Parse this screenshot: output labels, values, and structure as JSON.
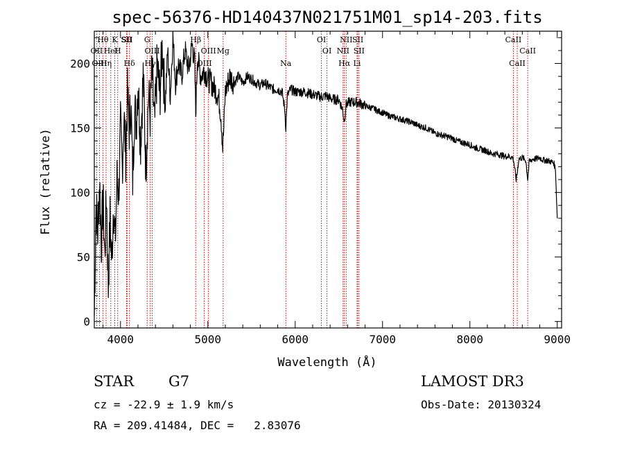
{
  "chart_data": {
    "type": "line",
    "title": "spec-56376-HD140437N021751M01_sp14-203.fits",
    "xlabel": "Wavelength (Å)",
    "ylabel": "Flux (relative)",
    "xlim": [
      3700,
      9050
    ],
    "ylim": [
      -5,
      225
    ],
    "xticks": [
      4000,
      5000,
      6000,
      7000,
      8000,
      9000
    ],
    "xtick_labels": [
      "4000",
      "5000",
      "6000",
      "7000",
      "8000",
      "9000"
    ],
    "yticks": [
      0,
      50,
      100,
      150,
      200
    ],
    "ytick_labels": [
      "0",
      "50",
      "100",
      "150",
      "200"
    ],
    "line_color": "#000000",
    "marker_color": "#cc0000",
    "series": [
      {
        "name": "flux",
        "x": [
          3700,
          3720,
          3740,
          3760,
          3780,
          3800,
          3820,
          3840,
          3860,
          3880,
          3900,
          3920,
          3940,
          3960,
          3980,
          4000,
          4020,
          4040,
          4060,
          4080,
          4100,
          4120,
          4140,
          4160,
          4180,
          4200,
          4230,
          4260,
          4290,
          4320,
          4340,
          4360,
          4390,
          4420,
          4450,
          4480,
          4510,
          4540,
          4570,
          4600,
          4630,
          4660,
          4700,
          4740,
          4780,
          4820,
          4850,
          4861,
          4880,
          4920,
          4960,
          5000,
          5040,
          5080,
          5120,
          5150,
          5170,
          5183,
          5200,
          5250,
          5300,
          5350,
          5400,
          5450,
          5500,
          5550,
          5600,
          5650,
          5700,
          5750,
          5800,
          5850,
          5880,
          5893,
          5910,
          5950,
          6000,
          6050,
          6100,
          6150,
          6200,
          6250,
          6300,
          6350,
          6400,
          6450,
          6500,
          6540,
          6563,
          6580,
          6620,
          6660,
          6700,
          6750,
          6800,
          6850,
          6900,
          6950,
          7000,
          7050,
          7100,
          7150,
          7200,
          7250,
          7300,
          7350,
          7400,
          7450,
          7500,
          7550,
          7600,
          7650,
          7700,
          7750,
          7800,
          7850,
          7900,
          7950,
          8000,
          8050,
          8100,
          8150,
          8200,
          8250,
          8300,
          8350,
          8400,
          8450,
          8490,
          8500,
          8530,
          8542,
          8560,
          8600,
          8640,
          8662,
          8680,
          8720,
          8760,
          8800,
          8840,
          8880,
          8920,
          8960,
          8980,
          9000
        ],
        "y": [
          5,
          90,
          70,
          110,
          60,
          95,
          50,
          100,
          25,
          80,
          45,
          95,
          60,
          110,
          100,
          150,
          120,
          160,
          130,
          175,
          150,
          170,
          110,
          165,
          155,
          185,
          140,
          190,
          120,
          175,
          160,
          195,
          150,
          200,
          175,
          215,
          165,
          210,
          175,
          220,
          185,
          200,
          190,
          210,
          195,
          215,
          200,
          160,
          205,
          190,
          195,
          188,
          185,
          180,
          175,
          160,
          135,
          150,
          178,
          190,
          185,
          190,
          185,
          190,
          188,
          185,
          183,
          185,
          182,
          180,
          180,
          178,
          165,
          150,
          175,
          180,
          178,
          178,
          178,
          177,
          176,
          175,
          174,
          175,
          173,
          172,
          172,
          165,
          155,
          168,
          170,
          170,
          170,
          169,
          167,
          166,
          165,
          163,
          162,
          160,
          159,
          158,
          157,
          156,
          155,
          154,
          152,
          151,
          150,
          148,
          146,
          145,
          144,
          143,
          142,
          140,
          139,
          138,
          137,
          135,
          134,
          133,
          132,
          130,
          130,
          129,
          128,
          128,
          127,
          125,
          110,
          115,
          126,
          127,
          125,
          110,
          124,
          126,
          126,
          127,
          125,
          125,
          124,
          123,
          118,
          80
        ]
      }
    ],
    "lines": [
      {
        "label": "Hθ",
        "x": 3798
      },
      {
        "label": "OII",
        "x": 3727
      },
      {
        "label": "OIII",
        "x": 3759
      },
      {
        "label": "K",
        "x": 3934
      },
      {
        "label": "HeI",
        "x": 3889
      },
      {
        "label": "Hη",
        "x": 3835
      },
      {
        "label": "SII",
        "x": 4069
      },
      {
        "label": "H",
        "x": 3968
      },
      {
        "label": "Hδ",
        "x": 4102
      },
      {
        "label": "SII",
        "x": 4076
      },
      {
        "label": "OIII",
        "x": 4363
      },
      {
        "label": "Hγ",
        "x": 4340
      },
      {
        "label": "G",
        "x": 4305
      },
      {
        "label": "OIII",
        "x": 5007
      },
      {
        "label": "OIII",
        "x": 4959
      },
      {
        "label": "Hβ",
        "x": 4861
      },
      {
        "label": "Mg",
        "x": 5175
      },
      {
        "label": "Na",
        "x": 5893
      },
      {
        "label": "OI",
        "x": 6300
      },
      {
        "label": "OI",
        "x": 6364
      },
      {
        "label": "Hα",
        "x": 6563
      },
      {
        "label": "SII",
        "x": 6717
      },
      {
        "label": "NII",
        "x": 6548
      },
      {
        "label": "Li",
        "x": 6708
      },
      {
        "label": "NII",
        "x": 6584
      },
      {
        "label": "SII",
        "x": 6731
      },
      {
        "label": "CaII",
        "x": 8542
      },
      {
        "label": "CaII",
        "x": 8498
      },
      {
        "label": "CaII",
        "x": 8662
      }
    ]
  },
  "info": {
    "class_label": "STAR",
    "subclass": "G7",
    "survey": "LAMOST DR3",
    "cz": "cz = -22.9 ± 1.9 km/s",
    "obs_date": "Obs-Date: 20130324",
    "coords": "RA = 209.41484, DEC =   2.83076"
  }
}
